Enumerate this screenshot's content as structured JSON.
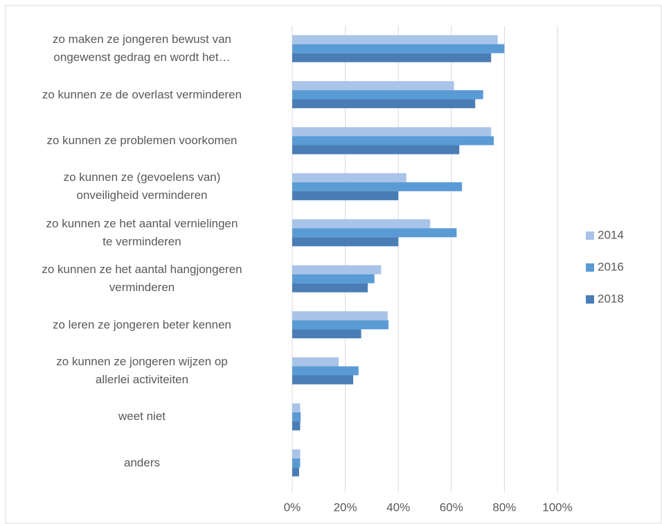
{
  "chart_data": {
    "type": "bar",
    "orientation": "horizontal",
    "categories": [
      "zo maken ze jongeren bewust van\nongewenst gedrag en wordt het…",
      "zo kunnen ze de overlast verminderen",
      "zo kunnen ze problemen voorkomen",
      "zo kunnen ze (gevoelens van)\nonveiligheid verminderen",
      "zo kunnen ze het aantal vernielingen\nte verminderen",
      "zo kunnen ze het aantal hangjongeren\nverminderen",
      "zo leren ze jongeren beter kennen",
      "zo kunnen ze jongeren wijzen op\nallerlei activiteiten",
      "weet niet",
      "anders"
    ],
    "series": [
      {
        "name": "2014",
        "color": "#a9c4e8",
        "values": [
          77.5,
          61,
          75,
          43,
          52,
          33.5,
          36,
          17.5,
          3,
          3
        ]
      },
      {
        "name": "2016",
        "color": "#5b9bd5",
        "values": [
          80,
          72,
          76,
          64,
          62,
          31,
          36.3,
          25,
          3.2,
          3
        ]
      },
      {
        "name": "2018",
        "color": "#4a7db5",
        "values": [
          75,
          69,
          63,
          40,
          40,
          28.5,
          26,
          23,
          3,
          2.6
        ]
      }
    ],
    "xlim": [
      0,
      100
    ],
    "xticks": [
      {
        "value": 0,
        "label": "0%"
      },
      {
        "value": 20,
        "label": "20%"
      },
      {
        "value": 40,
        "label": "40%"
      },
      {
        "value": 60,
        "label": "60%"
      },
      {
        "value": 80,
        "label": "80%"
      },
      {
        "value": 100,
        "label": "100%"
      }
    ],
    "grid": true,
    "legend": "right"
  }
}
